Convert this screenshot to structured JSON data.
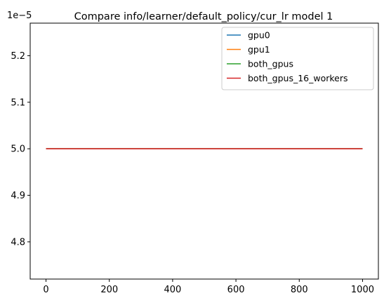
{
  "chart_data": {
    "type": "line",
    "title": "Compare info/learner/default_policy/cur_lr model 1",
    "xlabel": "",
    "ylabel": "",
    "xlim": [
      -50,
      1050
    ],
    "ylim": [
      4.72e-05,
      5.27e-05
    ],
    "y_offset_text": "1e−5",
    "x_ticks": [
      0,
      200,
      400,
      600,
      800,
      1000
    ],
    "x_tick_labels": [
      "0",
      "200",
      "400",
      "600",
      "800",
      "1000"
    ],
    "y_ticks": [
      4.8e-05,
      4.9e-05,
      5e-05,
      5.1e-05,
      5.2e-05
    ],
    "y_tick_labels": [
      "4.8",
      "4.9",
      "5.0",
      "5.1",
      "5.2"
    ],
    "grid": false,
    "legend_position": "top-right",
    "series": [
      {
        "name": "gpu0",
        "color": "#1f77b4",
        "x": [
          0,
          1000
        ],
        "y": [
          5e-05,
          5e-05
        ]
      },
      {
        "name": "gpu1",
        "color": "#ff7f0e",
        "x": [
          0,
          1000
        ],
        "y": [
          5e-05,
          5e-05
        ]
      },
      {
        "name": "both_gpus",
        "color": "#2ca02c",
        "x": [
          0,
          1000
        ],
        "y": [
          5e-05,
          5e-05
        ]
      },
      {
        "name": "both_gpus_16_workers",
        "color": "#d62728",
        "x": [
          0,
          1000
        ],
        "y": [
          5e-05,
          5e-05
        ]
      }
    ]
  }
}
